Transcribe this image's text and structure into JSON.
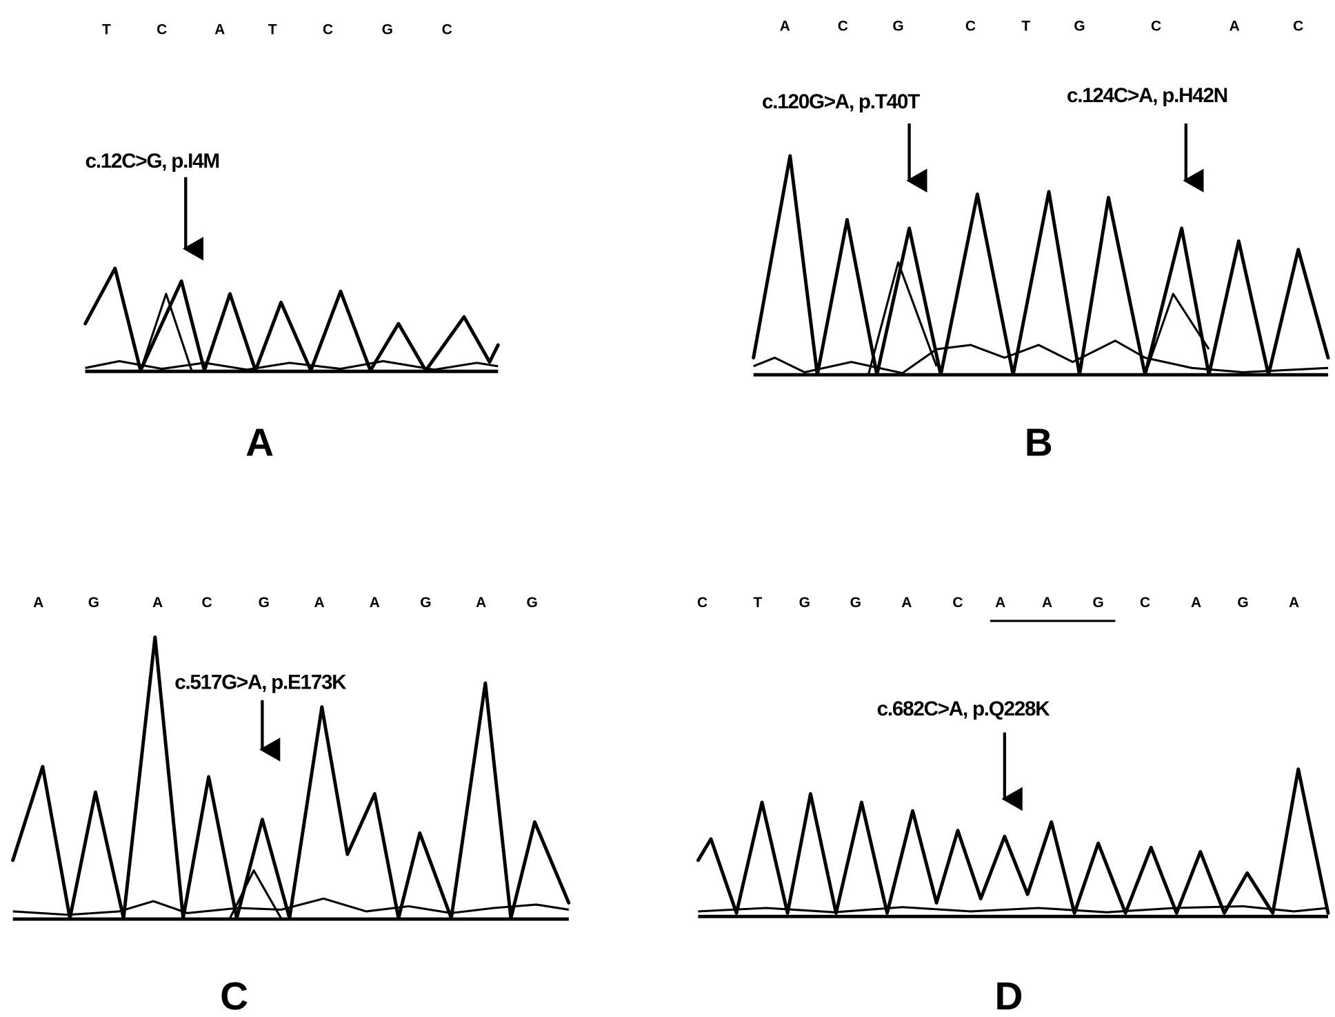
{
  "panels": [
    {
      "label": "A",
      "bases": [
        "T",
        "C",
        "A",
        "T",
        "C",
        "G",
        "C"
      ],
      "annotations": [
        "c.12C>G, p.I4M"
      ]
    },
    {
      "label": "B",
      "bases": [
        "A",
        "C",
        "G",
        "C",
        "T",
        "G",
        "C",
        "A",
        "C"
      ],
      "annotations": [
        "c.120G>A, p.T40T",
        "c.124C>A, p.H42N"
      ]
    },
    {
      "label": "C",
      "bases": [
        "A",
        "G",
        "A",
        "C",
        "G",
        "A",
        "A",
        "G",
        "A",
        "G"
      ],
      "annotations": [
        "c.517G>A, p.E173K"
      ]
    },
    {
      "label": "D",
      "bases": [
        "C",
        "T",
        "G",
        "G",
        "A",
        "C",
        "A",
        "A",
        "G",
        "C",
        "A",
        "G",
        "A"
      ],
      "annotations": [
        "c.682C>A, p.Q228K"
      ]
    }
  ]
}
